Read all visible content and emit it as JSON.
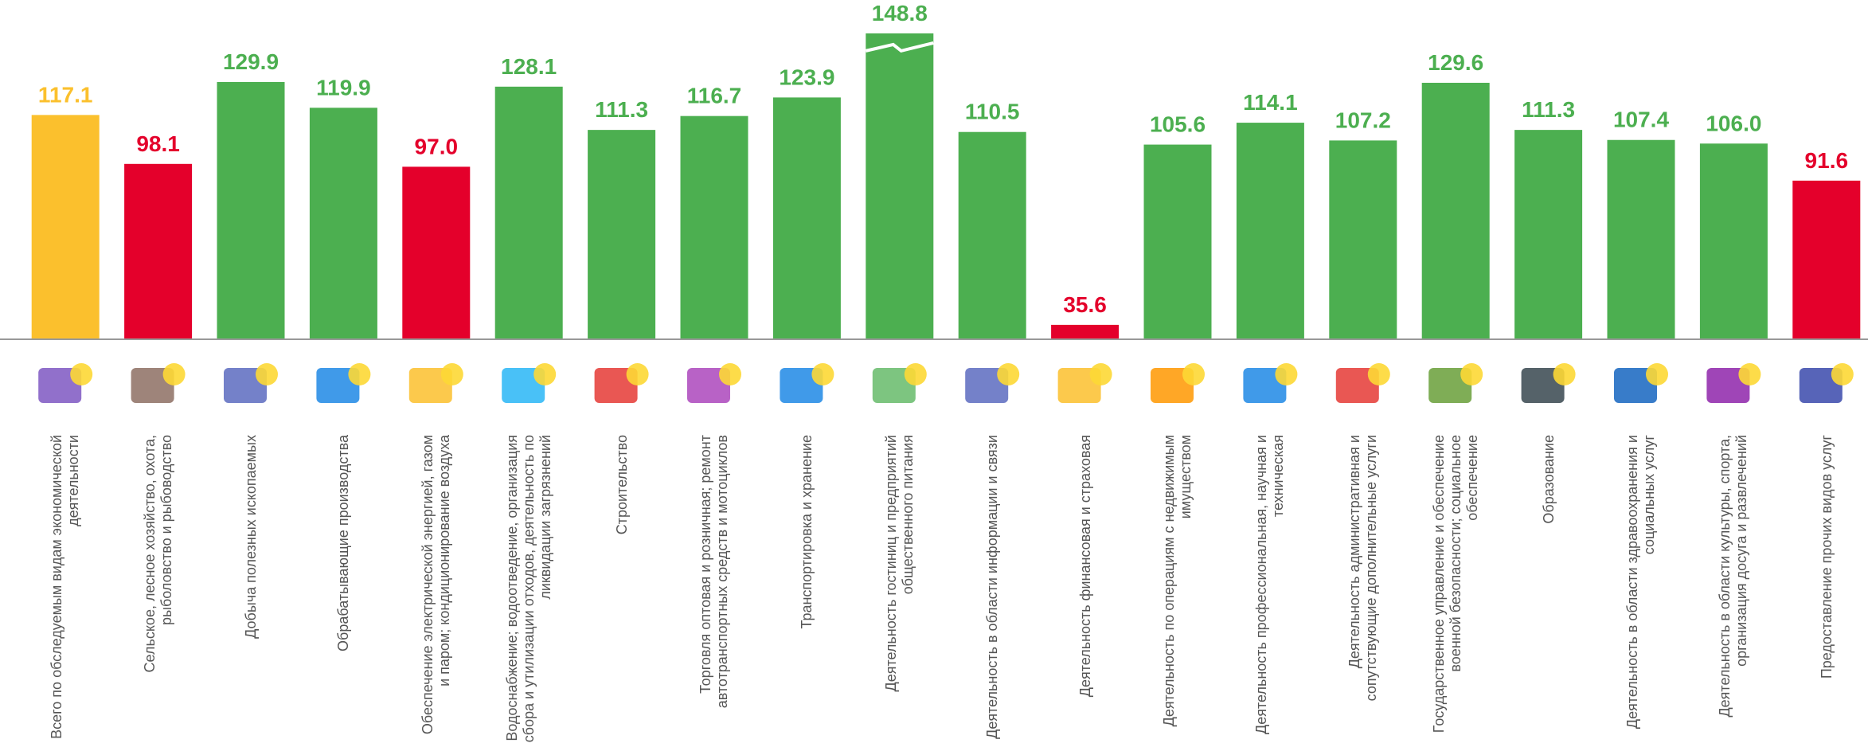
{
  "chart_data": {
    "type": "bar",
    "categories": [
      "Всего по обследуемым видам экономической деятельности",
      "Сельское, лесное хозяйство, охота, рыболовство и рыбоводство",
      "Добыча полезных ископаемых",
      "Обрабатывающие производства",
      "Обеспечение электрической энергией, газом и паром; кондиционирование воздуха",
      "Водоснабжение; водоотведение, организация сбора и утилизации отходов, деятельность по ликвидации загрязнений",
      "Строительство",
      "Торговля оптовая и розничная; ремонт автотранспортных средств и мотоциклов",
      "Транспортировка и хранение",
      "Деятельность гостиниц и предприятий общественного питания",
      "Деятельность в области информации и связи",
      "Деятельность финансовая и страховая",
      "Деятельность по операциям с недвижимым имуществом",
      "Деятельность профессиональная, научная и техническая",
      "Деятельность административная и сопутствующие дополнительные услуги",
      "Государственное управление и обеспечение военной безопасности; социальное обеспечение",
      "Образование",
      "Деятельность в области здравоохранения и социальных услуг",
      "Деятельность в области культуры, спорта, организация досуга и развлечений",
      "Предоставление прочих видов услуг"
    ],
    "values": [
      117.1,
      98.1,
      129.9,
      119.9,
      97.0,
      128.1,
      111.3,
      116.7,
      123.9,
      148.8,
      110.5,
      35.6,
      105.6,
      114.1,
      107.2,
      129.6,
      111.3,
      107.4,
      106.0,
      91.6
    ],
    "value_labels": [
      "117.1",
      "98.1",
      "129.9",
      "119.9",
      "97.0",
      "128.1",
      "111.3",
      "116.7",
      "123.9",
      "148.8",
      "110.5",
      "35.6",
      "105.6",
      "114.1",
      "107.2",
      "129.6",
      "111.3",
      "107.4",
      "106.0",
      "91.6"
    ],
    "colors": [
      "#fbc02d",
      "#e4002b",
      "#4caf50",
      "#4caf50",
      "#e4002b",
      "#4caf50",
      "#4caf50",
      "#4caf50",
      "#4caf50",
      "#4caf50",
      "#4caf50",
      "#e4002b",
      "#4caf50",
      "#4caf50",
      "#4caf50",
      "#4caf50",
      "#4caf50",
      "#4caf50",
      "#4caf50",
      "#e4002b"
    ],
    "ylim": [
      30,
      150
    ]
  }
}
